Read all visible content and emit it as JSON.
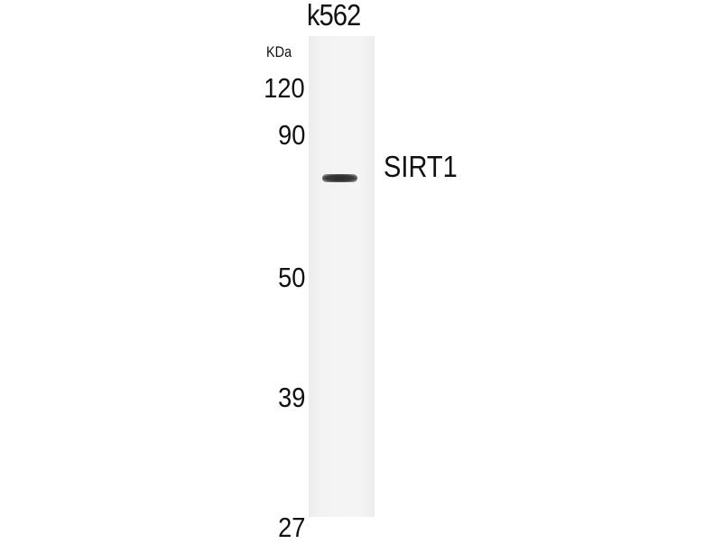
{
  "blot": {
    "lane_label": "k562",
    "unit_label": "KDa",
    "markers": [
      "120",
      "90",
      "50",
      "39",
      "27"
    ],
    "target_label": "SIRT1"
  }
}
